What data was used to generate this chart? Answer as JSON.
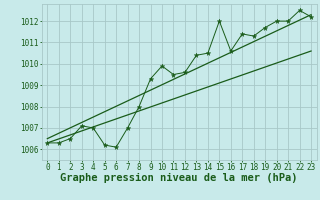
{
  "title": "Graphe pression niveau de la mer (hPa)",
  "background_color": "#c8eaea",
  "grid_color": "#a8c8c8",
  "line_color": "#1a5c1a",
  "marker_color": "#1a5c1a",
  "xlim": [
    -0.5,
    23.5
  ],
  "ylim": [
    1005.5,
    1012.8
  ],
  "yticks": [
    1006,
    1007,
    1008,
    1009,
    1010,
    1011,
    1012
  ],
  "xticks": [
    0,
    1,
    2,
    3,
    4,
    5,
    6,
    7,
    8,
    9,
    10,
    11,
    12,
    13,
    14,
    15,
    16,
    17,
    18,
    19,
    20,
    21,
    22,
    23
  ],
  "data_x": [
    0,
    1,
    2,
    3,
    4,
    5,
    6,
    7,
    8,
    9,
    10,
    11,
    12,
    13,
    14,
    15,
    16,
    17,
    18,
    19,
    20,
    21,
    22,
    23
  ],
  "data_y": [
    1006.3,
    1006.3,
    1006.5,
    1007.1,
    1007.0,
    1006.2,
    1006.1,
    1007.0,
    1008.0,
    1009.3,
    1009.9,
    1009.5,
    1009.6,
    1010.4,
    1010.5,
    1012.0,
    1010.6,
    1011.4,
    1011.3,
    1011.7,
    1012.0,
    1012.0,
    1012.5,
    1012.2
  ],
  "trend1_x": [
    0,
    23
  ],
  "trend1_y": [
    1006.3,
    1010.6
  ],
  "trend2_x": [
    0,
    23
  ],
  "trend2_y": [
    1006.5,
    1012.3
  ],
  "title_fontsize": 7.5,
  "tick_fontsize": 5.5
}
